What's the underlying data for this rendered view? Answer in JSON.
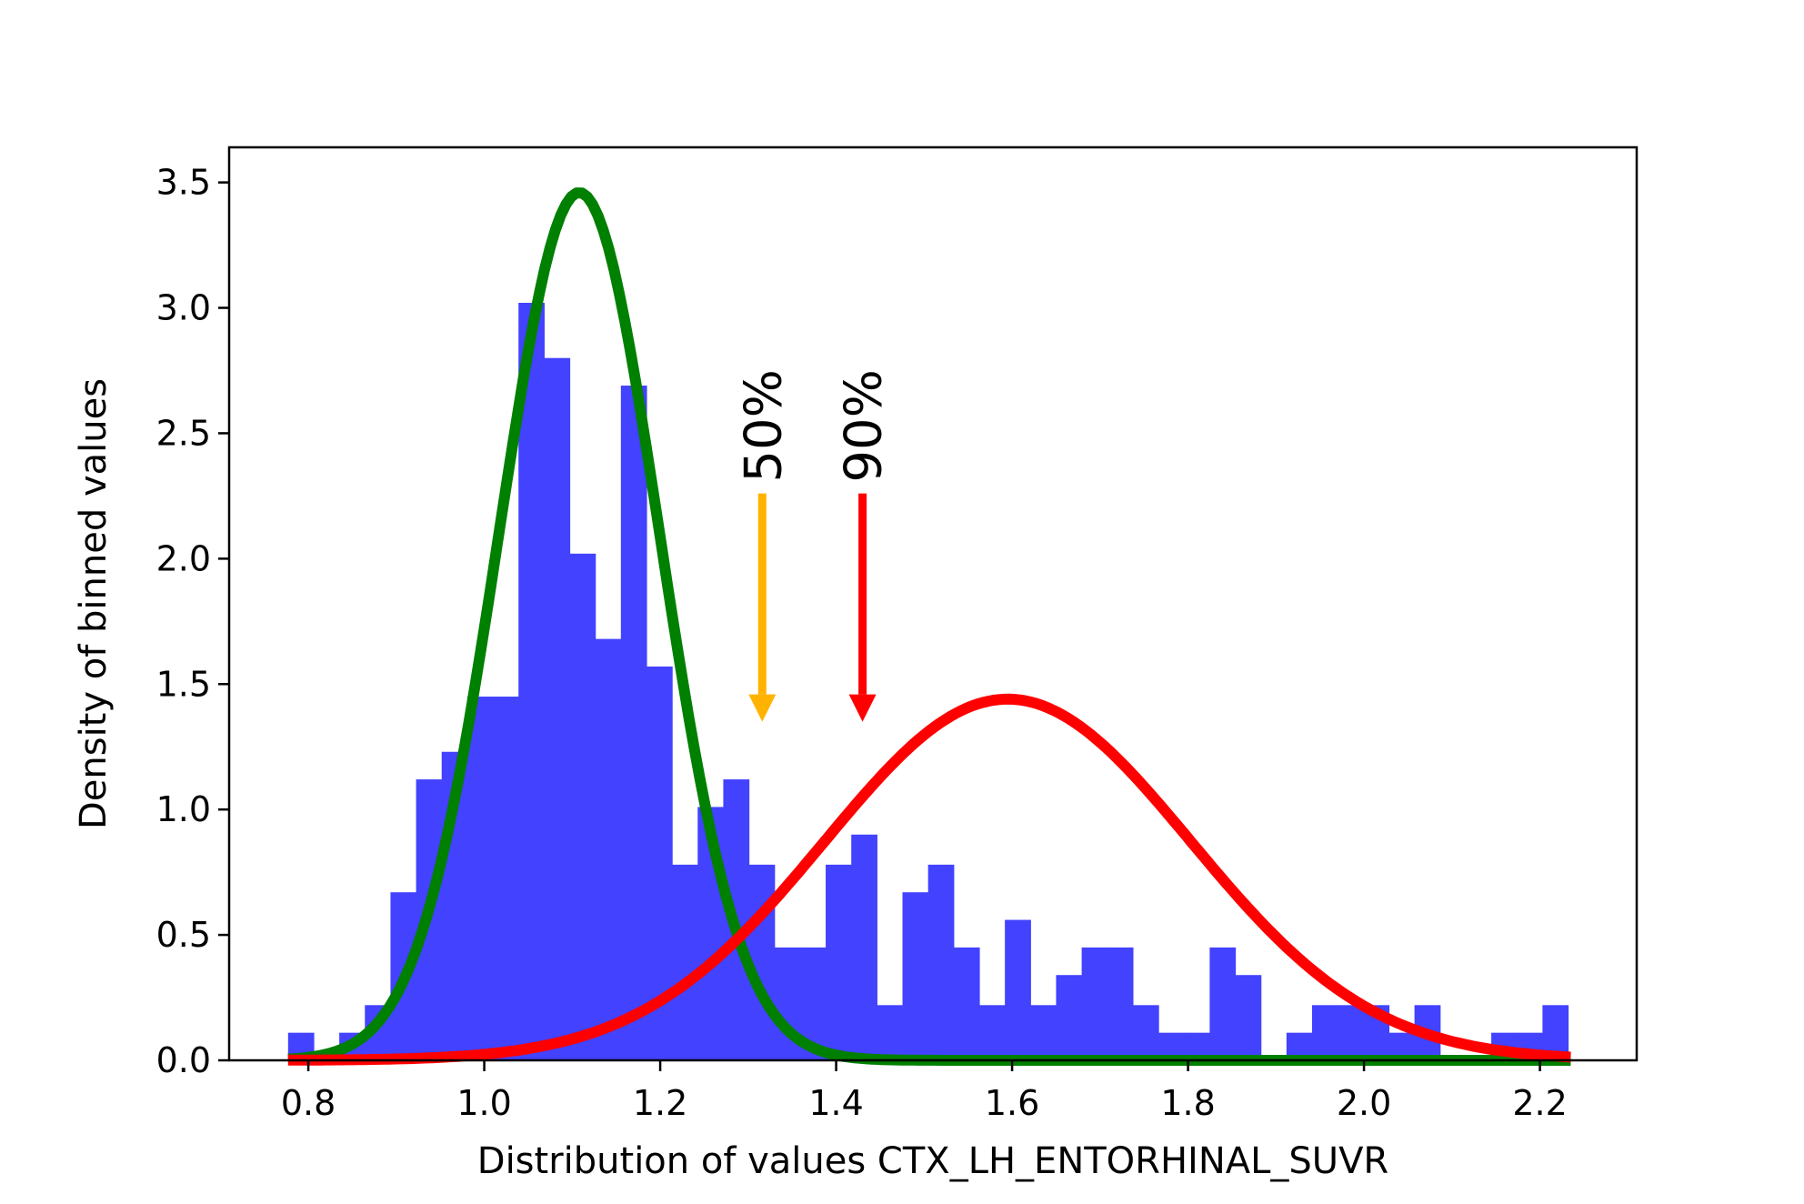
{
  "chart_data": {
    "type": "histogram",
    "xlabel": "Distribution of values CTX_LH_ENTORHINAL_SUVR",
    "ylabel": "Density of binned values",
    "xlim": [
      0.71,
      2.31
    ],
    "ylim": [
      0.0,
      3.64
    ],
    "xticks": [
      0.8,
      1.0,
      1.2,
      1.4,
      1.6,
      1.8,
      2.0,
      2.2
    ],
    "xtick_labels": [
      "0.8",
      "1.0",
      "1.2",
      "1.4",
      "1.6",
      "1.8",
      "2.0",
      "2.2"
    ],
    "yticks": [
      0.0,
      0.5,
      1.0,
      1.5,
      2.0,
      2.5,
      3.0,
      3.5
    ],
    "ytick_labels": [
      "0.0",
      "0.5",
      "1.0",
      "1.5",
      "2.0",
      "2.5",
      "3.0",
      "3.5"
    ],
    "grid": false,
    "colors": {
      "bars": "#4242ff",
      "curve_normal": "#008000",
      "curve_abnormal": "#ff0000",
      "arrow_50": "#ffb300",
      "arrow_90": "#ff0000"
    },
    "histogram": {
      "bin_start": 0.777,
      "bin_width": 0.0291,
      "values": [
        0.11,
        0.0,
        0.11,
        0.22,
        0.67,
        1.12,
        1.23,
        1.45,
        1.45,
        3.02,
        2.8,
        2.02,
        1.68,
        2.69,
        1.57,
        0.78,
        1.01,
        1.12,
        0.78,
        0.45,
        0.45,
        0.78,
        0.9,
        0.22,
        0.67,
        0.78,
        0.45,
        0.22,
        0.56,
        0.22,
        0.34,
        0.45,
        0.45,
        0.22,
        0.11,
        0.11,
        0.45,
        0.34,
        0.0,
        0.11,
        0.22,
        0.22,
        0.22,
        0.11,
        0.22,
        0.0,
        0.0,
        0.11,
        0.11,
        0.22
      ]
    },
    "series": [
      {
        "kind": "gaussian",
        "mean": 1.108,
        "std": 0.0914,
        "peak": 3.46,
        "x_range": [
          0.777,
          2.235
        ]
      },
      {
        "kind": "gaussian",
        "mean": 1.595,
        "std": 0.208,
        "peak": 1.44,
        "x_range": [
          0.777,
          2.235
        ]
      }
    ],
    "annotations": [
      {
        "text": "50%",
        "x": 1.316,
        "arrow_from_y": 2.26,
        "arrow_to_y": 1.35
      },
      {
        "text": "90%",
        "x": 1.43,
        "arrow_from_y": 2.26,
        "arrow_to_y": 1.35
      }
    ]
  }
}
